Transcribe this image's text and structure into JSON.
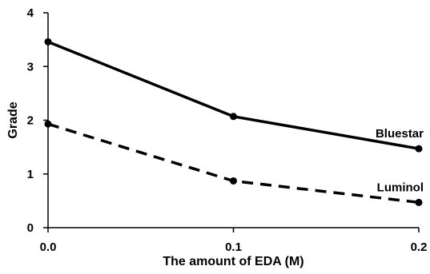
{
  "chart_data": {
    "type": "line",
    "title": "",
    "xlabel": "The amount of EDA (M)",
    "ylabel": "Grade",
    "x": [
      0.0,
      0.1,
      0.2
    ],
    "x_tick_labels": [
      "0.0",
      "0.1",
      "0.2"
    ],
    "xlim": [
      0.0,
      0.2
    ],
    "ylim": [
      0,
      4
    ],
    "y_ticks": [
      0,
      1,
      2,
      3,
      4
    ],
    "y_tick_labels": [
      "0",
      "1",
      "2",
      "3",
      "4"
    ],
    "grid": false,
    "legend": "none (series labelled directly on the lines)",
    "series": [
      {
        "name": "Bluestar",
        "values": [
          3.46,
          2.07,
          1.47
        ],
        "line_style": "solid",
        "color": "#000000"
      },
      {
        "name": "Luminol",
        "values": [
          1.93,
          0.87,
          0.47
        ],
        "line_style": "dashed",
        "color": "#000000"
      }
    ]
  }
}
